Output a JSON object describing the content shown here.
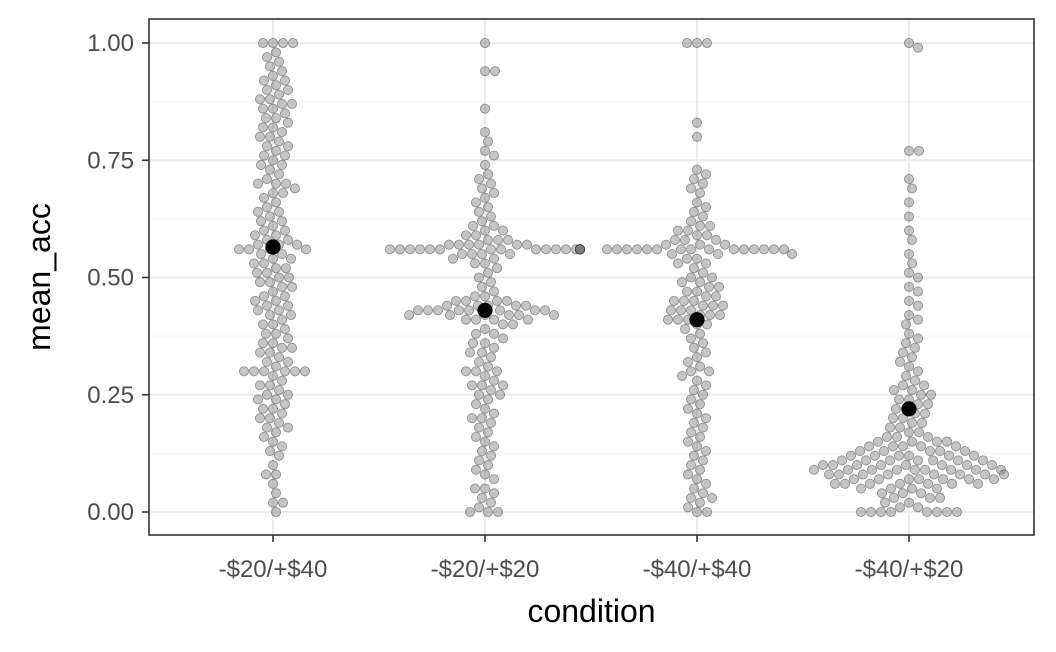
{
  "chart_data": {
    "type": "scatter",
    "xlabel": "condition",
    "ylabel": "mean_acc",
    "categories": [
      "-$20/+$40",
      "-$20/+$20",
      "-$40/+$40",
      "-$40/+$20"
    ],
    "ylim": [
      -0.05,
      1.05
    ],
    "yticks": [
      0.0,
      0.25,
      0.5,
      0.75,
      1.0
    ],
    "ytick_labels": [
      "0.00",
      "0.25",
      "0.50",
      "0.75",
      "1.00"
    ],
    "grid": true,
    "legend": "none",
    "colors": {
      "points": "#7f7f7f",
      "mean": "#000000",
      "grid_major": "#ebebeb",
      "grid_minor": "#f5f5f5",
      "panel_border": "#333333"
    },
    "means": [
      {
        "condition": "-$20/+$40",
        "value": 0.565
      },
      {
        "condition": "-$20/+$20",
        "value": 0.43
      },
      {
        "condition": "-$40/+$40",
        "value": 0.41
      },
      {
        "condition": "-$40/+$20",
        "value": 0.22
      }
    ],
    "series": [
      {
        "condition": "-$20/+$40",
        "values": [
          1.0,
          1.0,
          1.0,
          1.0,
          0.98,
          0.97,
          0.96,
          0.95,
          0.94,
          0.93,
          0.92,
          0.92,
          0.91,
          0.9,
          0.9,
          0.89,
          0.88,
          0.88,
          0.87,
          0.87,
          0.86,
          0.86,
          0.85,
          0.84,
          0.84,
          0.83,
          0.82,
          0.82,
          0.81,
          0.8,
          0.8,
          0.79,
          0.78,
          0.78,
          0.77,
          0.76,
          0.76,
          0.75,
          0.74,
          0.74,
          0.73,
          0.72,
          0.71,
          0.7,
          0.7,
          0.7,
          0.69,
          0.68,
          0.68,
          0.67,
          0.66,
          0.65,
          0.64,
          0.64,
          0.63,
          0.62,
          0.62,
          0.61,
          0.6,
          0.6,
          0.59,
          0.59,
          0.58,
          0.58,
          0.57,
          0.57,
          0.57,
          0.56,
          0.56,
          0.56,
          0.56,
          0.55,
          0.55,
          0.54,
          0.54,
          0.53,
          0.53,
          0.52,
          0.52,
          0.51,
          0.51,
          0.5,
          0.5,
          0.49,
          0.49,
          0.48,
          0.48,
          0.47,
          0.46,
          0.46,
          0.45,
          0.45,
          0.44,
          0.44,
          0.43,
          0.43,
          0.42,
          0.42,
          0.41,
          0.4,
          0.4,
          0.39,
          0.38,
          0.38,
          0.37,
          0.36,
          0.36,
          0.35,
          0.35,
          0.34,
          0.34,
          0.33,
          0.32,
          0.32,
          0.31,
          0.3,
          0.3,
          0.3,
          0.3,
          0.3,
          0.3,
          0.29,
          0.28,
          0.27,
          0.27,
          0.26,
          0.25,
          0.25,
          0.24,
          0.24,
          0.23,
          0.22,
          0.22,
          0.21,
          0.2,
          0.2,
          0.19,
          0.18,
          0.18,
          0.17,
          0.16,
          0.15,
          0.14,
          0.13,
          0.12,
          0.1,
          0.08,
          0.08,
          0.06,
          0.04,
          0.02,
          0.02,
          0.0
        ]
      },
      {
        "condition": "-$20/+$20",
        "values": [
          1.0,
          0.94,
          0.94,
          0.86,
          0.81,
          0.79,
          0.77,
          0.76,
          0.74,
          0.72,
          0.71,
          0.7,
          0.69,
          0.68,
          0.67,
          0.66,
          0.65,
          0.64,
          0.63,
          0.62,
          0.61,
          0.61,
          0.6,
          0.6,
          0.59,
          0.59,
          0.58,
          0.58,
          0.58,
          0.57,
          0.57,
          0.57,
          0.57,
          0.57,
          0.57,
          0.56,
          0.56,
          0.56,
          0.56,
          0.56,
          0.56,
          0.56,
          0.56,
          0.56,
          0.56,
          0.56,
          0.56,
          0.56,
          0.56,
          0.56,
          0.56,
          0.56,
          0.56,
          0.56,
          0.56,
          0.55,
          0.55,
          0.55,
          0.55,
          0.54,
          0.54,
          0.53,
          0.53,
          0.52,
          0.51,
          0.5,
          0.49,
          0.48,
          0.47,
          0.46,
          0.46,
          0.45,
          0.45,
          0.45,
          0.45,
          0.44,
          0.44,
          0.44,
          0.44,
          0.44,
          0.43,
          0.43,
          0.43,
          0.43,
          0.43,
          0.43,
          0.43,
          0.43,
          0.42,
          0.42,
          0.42,
          0.42,
          0.42,
          0.42,
          0.41,
          0.41,
          0.41,
          0.41,
          0.4,
          0.4,
          0.39,
          0.38,
          0.38,
          0.37,
          0.36,
          0.36,
          0.35,
          0.34,
          0.34,
          0.33,
          0.32,
          0.31,
          0.3,
          0.3,
          0.3,
          0.29,
          0.28,
          0.27,
          0.27,
          0.27,
          0.26,
          0.25,
          0.25,
          0.24,
          0.23,
          0.22,
          0.21,
          0.2,
          0.2,
          0.19,
          0.18,
          0.17,
          0.16,
          0.15,
          0.14,
          0.13,
          0.12,
          0.11,
          0.1,
          0.09,
          0.08,
          0.07,
          0.05,
          0.05,
          0.04,
          0.03,
          0.02,
          0.01,
          0.0,
          0.0,
          0.0
        ]
      },
      {
        "condition": "-$40/+$40",
        "values": [
          1.0,
          1.0,
          1.0,
          0.83,
          0.8,
          0.73,
          0.72,
          0.71,
          0.7,
          0.69,
          0.68,
          0.66,
          0.65,
          0.64,
          0.63,
          0.62,
          0.61,
          0.61,
          0.6,
          0.6,
          0.59,
          0.59,
          0.58,
          0.58,
          0.58,
          0.57,
          0.57,
          0.57,
          0.56,
          0.56,
          0.56,
          0.56,
          0.56,
          0.56,
          0.56,
          0.56,
          0.56,
          0.56,
          0.56,
          0.56,
          0.56,
          0.56,
          0.56,
          0.55,
          0.55,
          0.55,
          0.54,
          0.54,
          0.53,
          0.53,
          0.52,
          0.51,
          0.5,
          0.5,
          0.49,
          0.49,
          0.48,
          0.48,
          0.47,
          0.47,
          0.46,
          0.46,
          0.45,
          0.45,
          0.45,
          0.44,
          0.44,
          0.44,
          0.43,
          0.43,
          0.43,
          0.42,
          0.42,
          0.42,
          0.41,
          0.41,
          0.41,
          0.4,
          0.4,
          0.39,
          0.38,
          0.37,
          0.36,
          0.35,
          0.34,
          0.33,
          0.32,
          0.31,
          0.3,
          0.3,
          0.29,
          0.28,
          0.27,
          0.26,
          0.25,
          0.24,
          0.23,
          0.22,
          0.21,
          0.2,
          0.19,
          0.18,
          0.17,
          0.16,
          0.15,
          0.14,
          0.13,
          0.12,
          0.11,
          0.1,
          0.09,
          0.08,
          0.07,
          0.06,
          0.05,
          0.04,
          0.03,
          0.03,
          0.02,
          0.01,
          0.0,
          0.0
        ]
      },
      {
        "condition": "-$40/+$20",
        "values": [
          1.0,
          0.99,
          0.77,
          0.77,
          0.71,
          0.69,
          0.66,
          0.63,
          0.6,
          0.58,
          0.55,
          0.53,
          0.51,
          0.5,
          0.48,
          0.47,
          0.45,
          0.44,
          0.42,
          0.41,
          0.4,
          0.38,
          0.37,
          0.36,
          0.35,
          0.34,
          0.33,
          0.32,
          0.31,
          0.3,
          0.29,
          0.28,
          0.27,
          0.27,
          0.26,
          0.26,
          0.25,
          0.25,
          0.24,
          0.24,
          0.23,
          0.23,
          0.22,
          0.22,
          0.21,
          0.21,
          0.2,
          0.2,
          0.19,
          0.19,
          0.18,
          0.18,
          0.17,
          0.17,
          0.16,
          0.16,
          0.16,
          0.15,
          0.15,
          0.15,
          0.15,
          0.14,
          0.14,
          0.14,
          0.14,
          0.14,
          0.13,
          0.13,
          0.13,
          0.13,
          0.13,
          0.12,
          0.12,
          0.12,
          0.12,
          0.12,
          0.12,
          0.11,
          0.11,
          0.11,
          0.11,
          0.11,
          0.11,
          0.11,
          0.1,
          0.1,
          0.1,
          0.1,
          0.1,
          0.1,
          0.1,
          0.1,
          0.09,
          0.09,
          0.09,
          0.09,
          0.09,
          0.09,
          0.09,
          0.09,
          0.09,
          0.08,
          0.08,
          0.08,
          0.08,
          0.08,
          0.08,
          0.08,
          0.08,
          0.07,
          0.07,
          0.07,
          0.07,
          0.07,
          0.07,
          0.07,
          0.06,
          0.06,
          0.06,
          0.06,
          0.06,
          0.06,
          0.06,
          0.05,
          0.05,
          0.05,
          0.05,
          0.04,
          0.04,
          0.04,
          0.03,
          0.03,
          0.03,
          0.02,
          0.02,
          0.01,
          0.01,
          0.0,
          0.0,
          0.0,
          0.0,
          0.0,
          0.0,
          0.0,
          0.0
        ]
      }
    ]
  }
}
